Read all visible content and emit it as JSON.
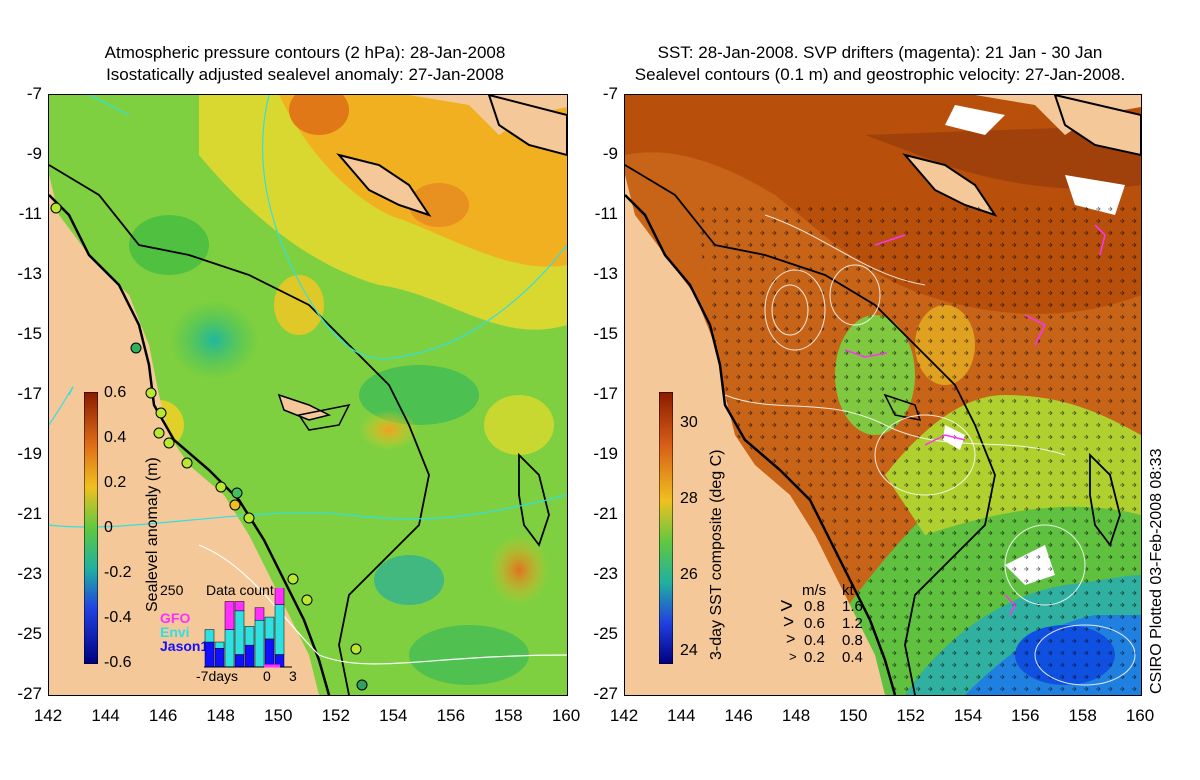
{
  "left_panel": {
    "title_line1": "Atmospheric pressure contours (2 hPa): 28-Jan-2008",
    "title_line2": "Isostatically adjusted sealevel anomaly: 27-Jan-2008",
    "colorbar": {
      "label": "Sealevel anomaly (m)",
      "ticks": [
        "0.6",
        "0.4",
        "0.2",
        "0",
        "-0.2",
        "-0.4",
        "-0.6"
      ]
    },
    "inset": {
      "title": "Data count",
      "max_label": "250",
      "x_labels": [
        "-7days",
        "0",
        "3"
      ],
      "legend": [
        {
          "label": "GFO",
          "color": "#ff30ff"
        },
        {
          "label": "Envi",
          "color": "#30e0e0"
        },
        {
          "label": "Jason1",
          "color": "#1010ff"
        }
      ],
      "bars": [
        {
          "gfo": 0,
          "envi": 40,
          "jason": 80
        },
        {
          "gfo": 0,
          "envi": 20,
          "jason": 60
        },
        {
          "gfo": 90,
          "envi": 120,
          "jason": 0
        },
        {
          "gfo": 30,
          "envi": 140,
          "jason": 40
        },
        {
          "gfo": 0,
          "envi": 60,
          "jason": 70
        },
        {
          "gfo": 40,
          "envi": 150,
          "jason": 0
        },
        {
          "gfo": 0,
          "envi": 70,
          "jason": 90
        },
        {
          "gfo": 70,
          "envi": 160,
          "jason": 40
        }
      ]
    }
  },
  "right_panel": {
    "title_line1": "SST: 28-Jan-2008. SVP drifters (magenta): 21 Jan - 30 Jan",
    "title_line2": "Sealevel contours (0.1 m) and geostrophic velocity: 27-Jan-2008.",
    "colorbar": {
      "label": "3-day SST composite (deg C)",
      "ticks": [
        "30",
        "28",
        "26",
        "24"
      ]
    },
    "velocity_legend": {
      "header_ms": "m/s",
      "header_kt": "kt",
      "rows": [
        {
          "ms": "0.8",
          "kt": "1.6"
        },
        {
          "ms": "0.6",
          "kt": "1.2"
        },
        {
          "ms": "0.4",
          "kt": "0.8"
        },
        {
          "ms": "0.2",
          "kt": "0.4"
        }
      ]
    },
    "credit": "CSIRO Plotted 03-Feb-2008 08:33"
  },
  "axes": {
    "lat_ticks": [
      "-7",
      "-9",
      "-11",
      "-13",
      "-15",
      "-17",
      "-19",
      "-21",
      "-23",
      "-25",
      "-27"
    ],
    "lon_ticks": [
      "142",
      "144",
      "146",
      "148",
      "150",
      "152",
      "154",
      "156",
      "158",
      "160"
    ]
  },
  "colors": {
    "land": "#f5c89a",
    "sla_low": "#000090",
    "sla_high": "#8b1a00",
    "coast": "#000000"
  }
}
